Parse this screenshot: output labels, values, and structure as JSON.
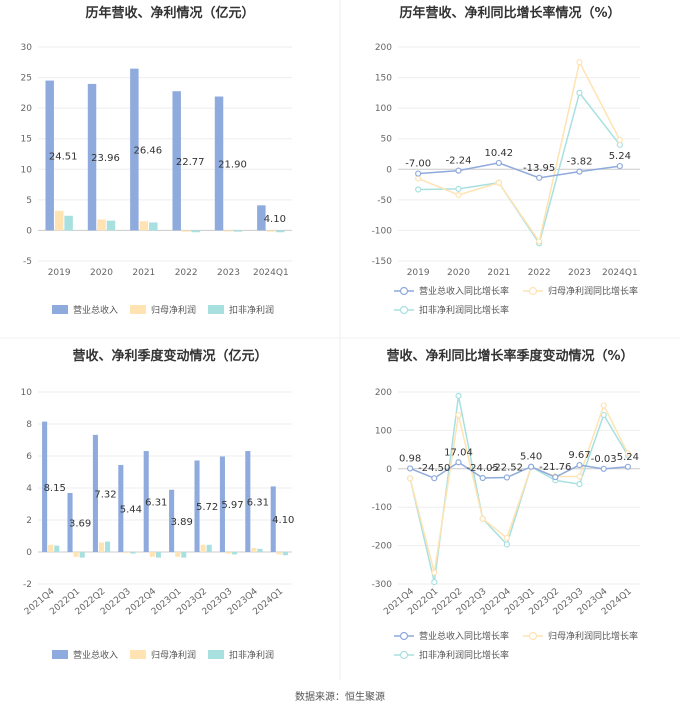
{
  "colors": {
    "revenue_bar": "#8faadc",
    "net_profit_bar": "#ffe3b3",
    "deducted_bar": "#a8e0e0",
    "revenue_line": "#8faadc",
    "net_profit_line": "#ffe3b3",
    "deducted_line": "#a8e0e0"
  },
  "source": "数据来源：恒生聚源",
  "chart_data": [
    {
      "type": "bar",
      "title": "历年营收、净利情况（亿元）",
      "categories": [
        "2019",
        "2020",
        "2021",
        "2022",
        "2023",
        "2024Q1"
      ],
      "series": [
        {
          "name": "营业总收入",
          "values": [
            24.51,
            23.96,
            26.46,
            22.77,
            21.9,
            4.1
          ]
        },
        {
          "name": "归母净利润",
          "values": [
            3.2,
            1.8,
            1.5,
            -0.2,
            -0.1,
            -0.2
          ]
        },
        {
          "name": "扣非净利润",
          "values": [
            2.4,
            1.6,
            1.3,
            -0.3,
            -0.2,
            -0.3
          ]
        }
      ],
      "data_labels": [
        "24.51",
        "23.96",
        "26.46",
        "22.77",
        "21.90",
        "4.10"
      ],
      "ylim": [
        -5,
        30
      ],
      "yticks": [
        -5,
        0,
        5,
        10,
        15,
        20,
        25,
        30
      ],
      "legend": "bottom"
    },
    {
      "type": "line",
      "title": "历年营收、净利同比增长率情况（%）",
      "categories": [
        "2019",
        "2020",
        "2021",
        "2022",
        "2023",
        "2024Q1"
      ],
      "series": [
        {
          "name": "营业总收入同比增长率",
          "values": [
            -7.0,
            -2.24,
            10.42,
            -13.95,
            -3.82,
            5.24
          ]
        },
        {
          "name": "归母净利润同比增长率",
          "values": [
            -15,
            -42,
            -22,
            -118,
            175,
            48
          ]
        },
        {
          "name": "扣非净利润同比增长率",
          "values": [
            -33,
            -32,
            -22,
            -121,
            125,
            40
          ]
        }
      ],
      "data_labels": [
        "-7.00",
        "-2.24",
        "10.42",
        "-13.95",
        "-3.82",
        "5.24"
      ],
      "ylim": [
        -150,
        200
      ],
      "yticks": [
        -150,
        -100,
        -50,
        0,
        50,
        100,
        150,
        200
      ],
      "legend": "bottom"
    },
    {
      "type": "bar",
      "title": "营收、净利季度变动情况（亿元）",
      "categories": [
        "2021Q4",
        "2022Q1",
        "2022Q2",
        "2022Q3",
        "2022Q4",
        "2023Q1",
        "2023Q2",
        "2023Q3",
        "2023Q4",
        "2024Q1"
      ],
      "series": [
        {
          "name": "营业总收入",
          "values": [
            8.15,
            3.69,
            7.32,
            5.44,
            6.31,
            3.89,
            5.72,
            5.97,
            6.31,
            4.1
          ]
        },
        {
          "name": "归母净利润",
          "values": [
            0.45,
            -0.3,
            0.6,
            -0.05,
            -0.3,
            -0.3,
            0.45,
            -0.1,
            0.25,
            -0.15
          ]
        },
        {
          "name": "扣非净利润",
          "values": [
            0.4,
            -0.35,
            0.65,
            -0.1,
            -0.35,
            -0.35,
            0.45,
            -0.15,
            0.2,
            -0.2
          ]
        }
      ],
      "data_labels": [
        "8.15",
        "3.69",
        "7.32",
        "5.44",
        "6.31",
        "3.89",
        "5.72",
        "5.97",
        "6.31",
        "4.10"
      ],
      "ylim": [
        -2,
        10
      ],
      "yticks": [
        -2,
        0,
        2,
        4,
        6,
        8,
        10
      ],
      "legend": "bottom"
    },
    {
      "type": "line",
      "title": "营收、净利同比增长率季度变动情况（%）",
      "categories": [
        "2021Q4",
        "2022Q1",
        "2022Q2",
        "2022Q3",
        "2022Q4",
        "2023Q1",
        "2023Q2",
        "2023Q3",
        "2023Q4",
        "2024Q1"
      ],
      "series": [
        {
          "name": "营业总收入同比增长率",
          "values": [
            0.98,
            -24.5,
            17.04,
            -24.05,
            -22.52,
            5.4,
            -21.76,
            9.67,
            -0.03,
            5.24
          ]
        },
        {
          "name": "归母净利润同比增长率",
          "values": [
            -25,
            -270,
            140,
            -130,
            -180,
            5,
            -20,
            -20,
            165,
            40
          ]
        },
        {
          "name": "扣非净利润同比增长率",
          "values": [
            -25,
            -295,
            190,
            -130,
            -197,
            5,
            -30,
            -40,
            140,
            35
          ]
        }
      ],
      "data_labels": [
        "0.98",
        "-24.50",
        "17.04",
        "-24.05",
        "-22.52",
        "5.40",
        "-21.76",
        "9.67",
        "-0.03",
        "5.24"
      ],
      "ylim": [
        -300,
        200
      ],
      "yticks": [
        -300,
        -200,
        -100,
        0,
        100,
        200
      ],
      "legend": "bottom"
    }
  ]
}
